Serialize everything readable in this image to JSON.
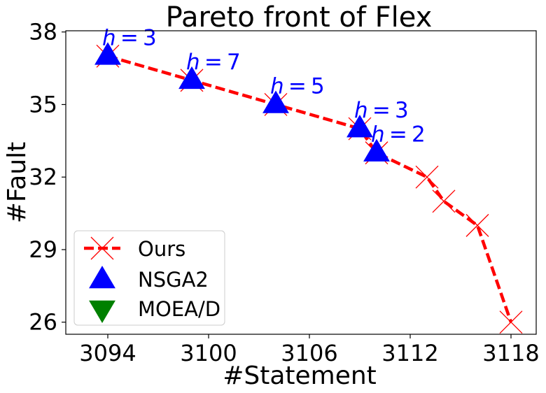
{
  "chart_data": {
    "type": "scatter",
    "title": "Pareto front of Flex",
    "xlabel": "#Statement",
    "ylabel": "#Fault",
    "xlim": [
      3091.5,
      3119.5
    ],
    "ylim": [
      25.5,
      38.05
    ],
    "xticks": [
      3094,
      3100,
      3106,
      3112,
      3118
    ],
    "yticks": [
      26,
      29,
      32,
      35,
      38
    ],
    "grid": false,
    "legend_position": "lower-left",
    "series": [
      {
        "name": "Ours",
        "kind": "line-x",
        "color": "#ff0000",
        "points": [
          {
            "x": 3094,
            "y": 37
          },
          {
            "x": 3099,
            "y": 36
          },
          {
            "x": 3104,
            "y": 35
          },
          {
            "x": 3109,
            "y": 34
          },
          {
            "x": 3110,
            "y": 33
          },
          {
            "x": 3113,
            "y": 32
          },
          {
            "x": 3114,
            "y": 31
          },
          {
            "x": 3116,
            "y": 30
          },
          {
            "x": 3118,
            "y": 26
          }
        ]
      },
      {
        "name": "NSGA2",
        "kind": "triangle-up",
        "color": "#0000ff",
        "points": [
          {
            "x": 3094,
            "y": 37
          },
          {
            "x": 3099,
            "y": 36
          },
          {
            "x": 3104,
            "y": 35
          },
          {
            "x": 3109,
            "y": 34
          },
          {
            "x": 3110,
            "y": 33
          }
        ]
      },
      {
        "name": "MOEA/D",
        "kind": "triangle-down",
        "color": "#008000",
        "points": []
      }
    ],
    "annotations": [
      {
        "text": "h = 3",
        "x": 3094,
        "y": 37
      },
      {
        "text": "h = 7",
        "x": 3099,
        "y": 36
      },
      {
        "text": "h = 5",
        "x": 3104,
        "y": 35
      },
      {
        "text": "h = 3",
        "x": 3109,
        "y": 34
      },
      {
        "text": "h = 2",
        "x": 3110,
        "y": 33
      }
    ],
    "annotation_color": "#0000ff"
  }
}
